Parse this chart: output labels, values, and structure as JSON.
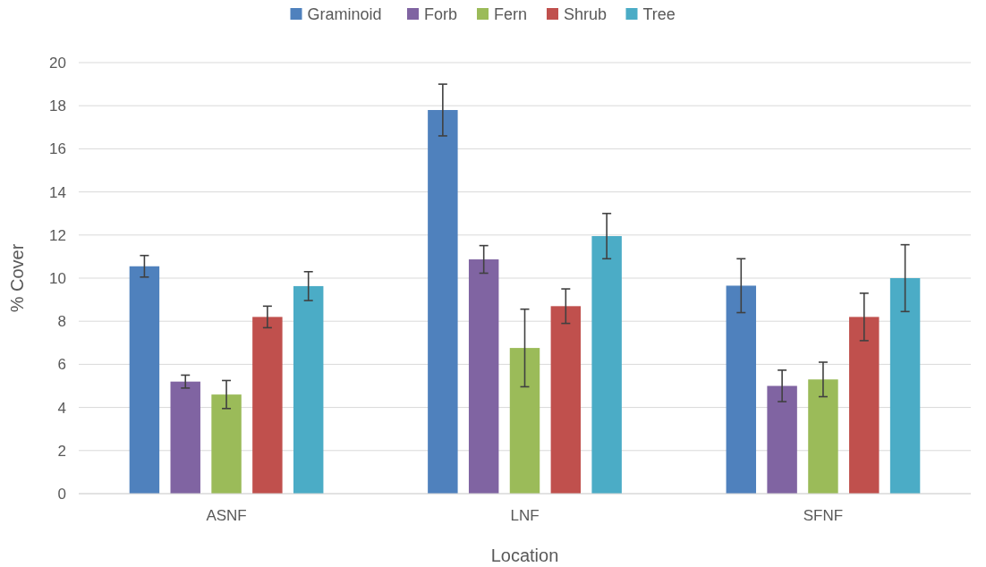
{
  "chart_data": {
    "type": "bar",
    "xlabel": "Location",
    "ylabel": "% Cover",
    "categories": [
      "ASNF",
      "LNF",
      "SFNF"
    ],
    "series": [
      {
        "name": "Graminoid",
        "color": "#4f81bd",
        "values": [
          10.55,
          17.8,
          9.65
        ],
        "errors": [
          0.5,
          1.2,
          1.25
        ]
      },
      {
        "name": "Forb",
        "color": "#8064a2",
        "values": [
          5.2,
          10.87,
          5.0
        ],
        "errors": [
          0.3,
          0.64,
          0.73
        ]
      },
      {
        "name": "Fern",
        "color": "#9bbb59",
        "values": [
          4.6,
          6.76,
          5.3
        ],
        "errors": [
          0.65,
          1.8,
          0.8
        ]
      },
      {
        "name": "Shrub",
        "color": "#c0504d",
        "values": [
          8.2,
          8.7,
          8.2
        ],
        "errors": [
          0.5,
          0.8,
          1.1
        ]
      },
      {
        "name": "Tree",
        "color": "#4bacc6",
        "values": [
          9.63,
          11.95,
          10.0
        ],
        "errors": [
          0.67,
          1.05,
          1.55
        ]
      }
    ],
    "ylim": [
      0,
      20
    ],
    "yticks": [
      0,
      2,
      4,
      6,
      8,
      10,
      12,
      14,
      16,
      18,
      20
    ],
    "grid": "y",
    "legend": "top"
  }
}
